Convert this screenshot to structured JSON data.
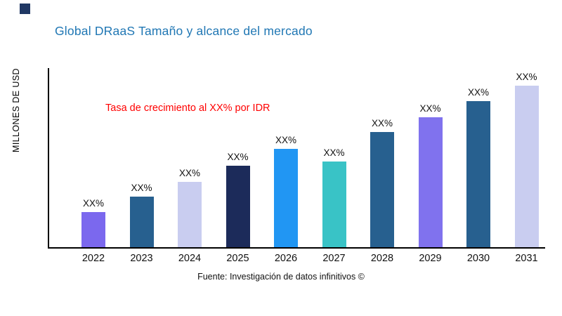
{
  "logo": {
    "color": "#203864"
  },
  "colors": {
    "title": "#2077B4",
    "annotation": "#FF0000",
    "axis": "#000000",
    "labels": "#111111"
  },
  "chart_data": {
    "type": "bar",
    "title": "Global DRaaS Tamaño y alcance del mercado",
    "ylabel": "MILLONES DE USD",
    "xlabel": "",
    "annotation": "Tasa de crecimiento al XX% por IDR",
    "source": "Fuente: Investigación de datos infinitivos ©",
    "categories": [
      "2022",
      "2023",
      "2024",
      "2025",
      "2026",
      "2027",
      "2028",
      "2029",
      "2030",
      "2031"
    ],
    "values": [
      50,
      72,
      93,
      116,
      140,
      122,
      164,
      185,
      208,
      230
    ],
    "value_unit": "relative-height (no numeric axis ticks shown)",
    "data_labels": [
      "XX%",
      "XX%",
      "XX%",
      "XX%",
      "XX%",
      "XX%",
      "XX%",
      "XX%",
      "XX%",
      "XX%"
    ],
    "bar_colors": [
      "#7B68EE",
      "#27608F",
      "#C9CDF0",
      "#1C2B5A",
      "#2196F3",
      "#39C3C6",
      "#27608F",
      "#8072EE",
      "#27608F",
      "#C9CDF0"
    ],
    "ylim": [
      0,
      255
    ],
    "grid": false,
    "legend": null
  }
}
